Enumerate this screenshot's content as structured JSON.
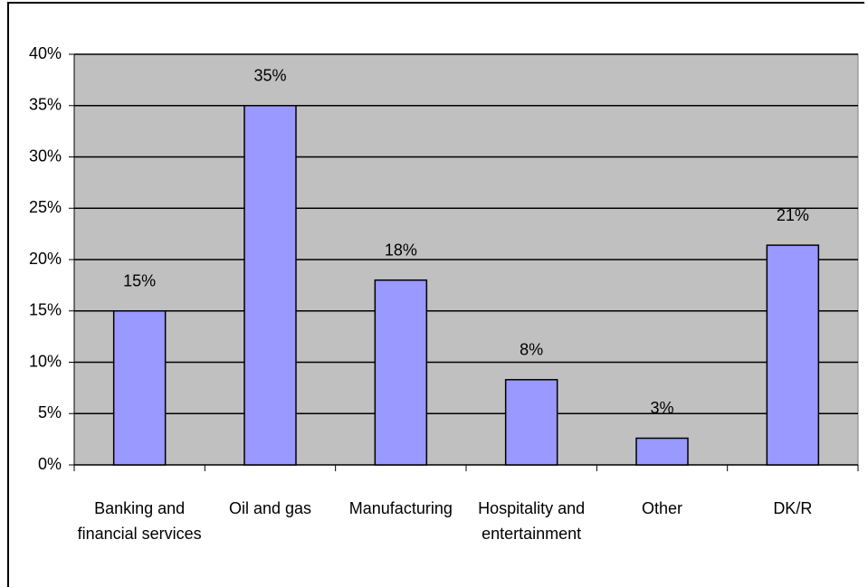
{
  "chart_data": {
    "type": "bar",
    "categories": [
      "Banking and financial services",
      "Oil and gas",
      "Manufacturing",
      "Hospitality and entertainment",
      "Other",
      "DK/R"
    ],
    "values": [
      15,
      35,
      18,
      8.3,
      2.6,
      21.4
    ],
    "value_labels": [
      "15%",
      "35%",
      "18%",
      "8%",
      "3%",
      "21%"
    ],
    "color": "#9999ff",
    "ylim": [
      0,
      40
    ],
    "yticks": [
      {
        "value": 0,
        "label": "0%"
      },
      {
        "value": 5,
        "label": "5%"
      },
      {
        "value": 10,
        "label": "10%"
      },
      {
        "value": 15,
        "label": "15%"
      },
      {
        "value": 20,
        "label": "20%"
      },
      {
        "value": 25,
        "label": "25%"
      },
      {
        "value": 30,
        "label": "30%"
      },
      {
        "value": 35,
        "label": "35%"
      },
      {
        "value": 40,
        "label": "40%"
      }
    ],
    "grid": true
  }
}
